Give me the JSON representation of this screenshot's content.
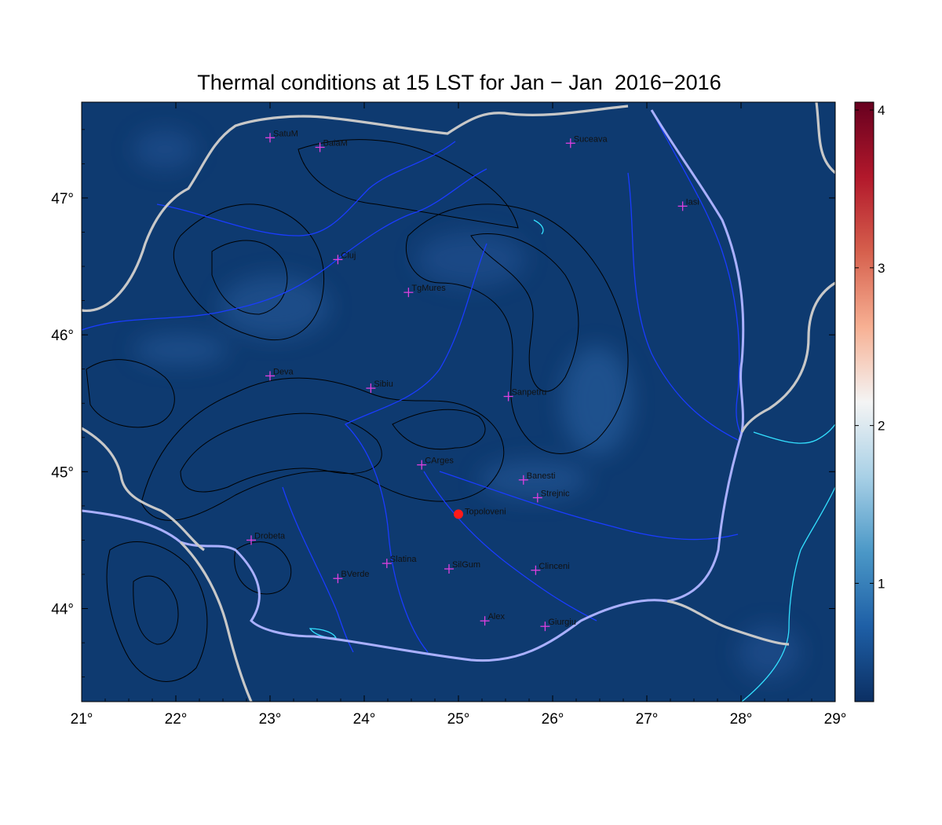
{
  "title": "Thermal conditions at 15 LST for Jan − Jan  2016−2016",
  "map": {
    "lon_range": [
      21,
      29
    ],
    "lat_range": [
      43.32,
      47.7
    ],
    "x_ticks": [
      {
        "value": 21,
        "label": "21°"
      },
      {
        "value": 22,
        "label": "22°"
      },
      {
        "value": 23,
        "label": "23°"
      },
      {
        "value": 24,
        "label": "24°"
      },
      {
        "value": 25,
        "label": "25°"
      },
      {
        "value": 26,
        "label": "26°"
      },
      {
        "value": 27,
        "label": "27°"
      },
      {
        "value": 28,
        "label": "28°"
      },
      {
        "value": 29,
        "label": "29°"
      }
    ],
    "y_ticks": [
      {
        "value": 44,
        "label": "44°"
      },
      {
        "value": 45,
        "label": "45°"
      },
      {
        "value": 46,
        "label": "46°"
      },
      {
        "value": 47,
        "label": "47°"
      }
    ],
    "background_color": "#0e3a70",
    "river_color": "#1a3cff",
    "border_color": "#c8c8c8",
    "danube_color": "#aab0ff",
    "coast_color": "#33e0ff",
    "contour_color": "#000000",
    "station_marker_color": "#e040e0",
    "highlight_color": "#ff1a1a",
    "stations": [
      {
        "name": "SatuM",
        "lon": 23.0,
        "lat": 47.44
      },
      {
        "name": "BaiaM",
        "lon": 23.53,
        "lat": 47.37
      },
      {
        "name": "Suceava",
        "lon": 26.19,
        "lat": 47.4
      },
      {
        "name": "Iasi",
        "lon": 27.38,
        "lat": 46.94
      },
      {
        "name": "Cluj",
        "lon": 23.72,
        "lat": 46.55
      },
      {
        "name": "TgMures",
        "lon": 24.47,
        "lat": 46.31
      },
      {
        "name": "Deva",
        "lon": 23.0,
        "lat": 45.7
      },
      {
        "name": "Sibiu",
        "lon": 24.07,
        "lat": 45.61
      },
      {
        "name": "Sanpetru",
        "lon": 25.53,
        "lat": 45.55
      },
      {
        "name": "CArges",
        "lon": 24.61,
        "lat": 45.05
      },
      {
        "name": "Banesti",
        "lon": 25.69,
        "lat": 44.94
      },
      {
        "name": "Strejnic",
        "lon": 25.84,
        "lat": 44.81
      },
      {
        "name": "Drobeta",
        "lon": 22.8,
        "lat": 44.5
      },
      {
        "name": "Slatina",
        "lon": 24.24,
        "lat": 44.33
      },
      {
        "name": "SilGum",
        "lon": 24.9,
        "lat": 44.29
      },
      {
        "name": "Clinceni",
        "lon": 25.82,
        "lat": 44.28
      },
      {
        "name": "BVerde",
        "lon": 23.72,
        "lat": 44.22
      },
      {
        "name": "Alex",
        "lon": 25.28,
        "lat": 43.91
      },
      {
        "name": "Giurgiu",
        "lon": 25.92,
        "lat": 43.87
      }
    ],
    "highlight_station": {
      "name": "Topoloveni",
      "lon": 25.0,
      "lat": 44.69
    }
  },
  "colorbar": {
    "range": [
      0.25,
      4.05
    ],
    "ticks": [
      {
        "value": 1,
        "label": "1"
      },
      {
        "value": 2,
        "label": "2"
      },
      {
        "value": 3,
        "label": "3"
      },
      {
        "value": 4,
        "label": "4"
      }
    ],
    "colors": [
      "#0b2f63",
      "#1e5fa6",
      "#4b98c7",
      "#a8d0e6",
      "#f4f4f4",
      "#f7b093",
      "#d6604d",
      "#b2182b",
      "#67001f"
    ]
  }
}
